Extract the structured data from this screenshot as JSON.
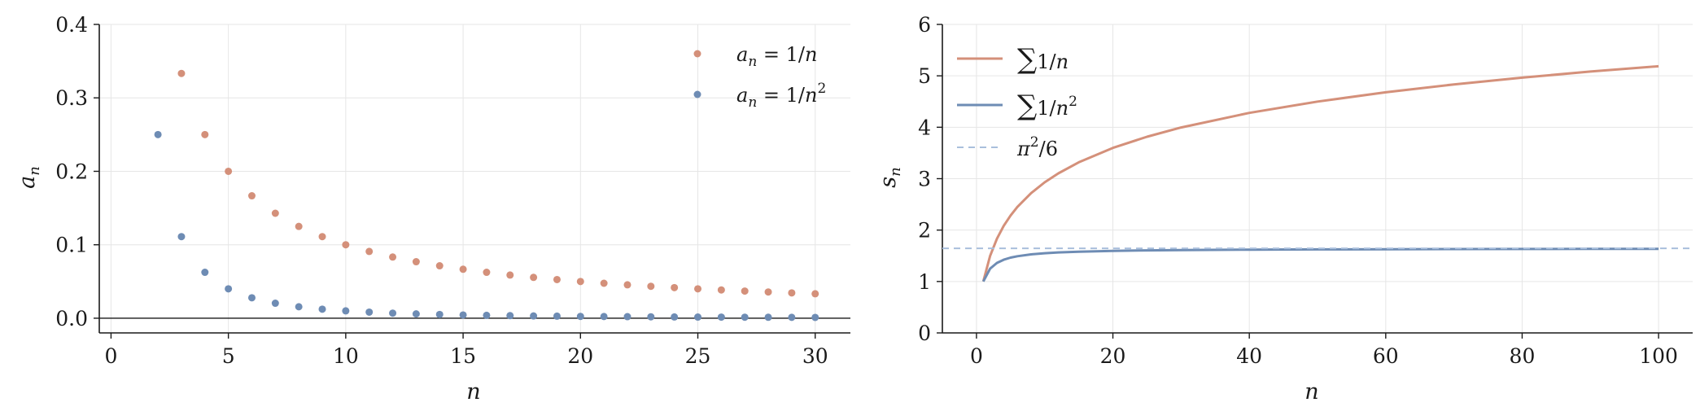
{
  "colors": {
    "harmonic": "#d4907a",
    "basel": "#6e8cb4",
    "reference": "#a9bfdc"
  },
  "chart_data": [
    {
      "type": "scatter",
      "xlabel": "n",
      "ylabel": "a_n",
      "xlim": [
        -0.5,
        31.5
      ],
      "ylim": [
        -0.02,
        0.4
      ],
      "xticks": [
        0,
        5,
        10,
        15,
        20,
        25,
        30
      ],
      "yticks": [
        0.0,
        0.1,
        0.2,
        0.3,
        0.4
      ],
      "xtick_labels": [
        "0",
        "5",
        "10",
        "15",
        "20",
        "25",
        "30"
      ],
      "ytick_labels": [
        "0.0",
        "0.1",
        "0.2",
        "0.3",
        "0.4"
      ],
      "grid": true,
      "horizontal_line": 0,
      "legend_position": "top-right",
      "series": [
        {
          "name": "a_n = 1/n",
          "color_key": "harmonic",
          "x": [
            3,
            4,
            5,
            6,
            7,
            8,
            9,
            10,
            11,
            12,
            13,
            14,
            15,
            16,
            17,
            18,
            19,
            20,
            21,
            22,
            23,
            24,
            25,
            26,
            27,
            28,
            29,
            30
          ],
          "y": [
            0.3333,
            0.25,
            0.2,
            0.1667,
            0.1429,
            0.125,
            0.1111,
            0.1,
            0.0909,
            0.0833,
            0.0769,
            0.0714,
            0.0667,
            0.0625,
            0.0588,
            0.0556,
            0.0526,
            0.05,
            0.0476,
            0.0455,
            0.0435,
            0.0417,
            0.04,
            0.0385,
            0.037,
            0.0357,
            0.0345,
            0.0333
          ]
        },
        {
          "name": "a_n = 1/n^2",
          "color_key": "basel",
          "x": [
            2,
            3,
            4,
            5,
            6,
            7,
            8,
            9,
            10,
            11,
            12,
            13,
            14,
            15,
            16,
            17,
            18,
            19,
            20,
            21,
            22,
            23,
            24,
            25,
            26,
            27,
            28,
            29,
            30
          ],
          "y": [
            0.25,
            0.1111,
            0.0625,
            0.04,
            0.0278,
            0.0204,
            0.0156,
            0.0123,
            0.01,
            0.0083,
            0.0069,
            0.0059,
            0.0051,
            0.0044,
            0.0039,
            0.0035,
            0.0031,
            0.0028,
            0.0025,
            0.0023,
            0.0021,
            0.0019,
            0.0017,
            0.0016,
            0.0015,
            0.0014,
            0.0013,
            0.0012,
            0.0011
          ]
        }
      ]
    },
    {
      "type": "line",
      "xlabel": "n",
      "ylabel": "s_n",
      "xlim": [
        -5,
        105
      ],
      "ylim": [
        0,
        6
      ],
      "xticks": [
        0,
        20,
        40,
        60,
        80,
        100
      ],
      "yticks": [
        0,
        1,
        2,
        3,
        4,
        5,
        6
      ],
      "xtick_labels": [
        "0",
        "20",
        "40",
        "60",
        "80",
        "100"
      ],
      "ytick_labels": [
        "0",
        "1",
        "2",
        "3",
        "4",
        "5",
        "6"
      ],
      "grid": true,
      "legend_position": "top-left",
      "series": [
        {
          "name": "∑1/n",
          "color_key": "harmonic",
          "x": [
            1,
            2,
            3,
            4,
            5,
            6,
            8,
            10,
            12,
            15,
            20,
            25,
            30,
            40,
            50,
            60,
            70,
            80,
            90,
            100
          ],
          "y": [
            1.0,
            1.5,
            1.833,
            2.083,
            2.283,
            2.45,
            2.718,
            2.929,
            3.103,
            3.318,
            3.598,
            3.816,
            3.995,
            4.279,
            4.499,
            4.68,
            4.833,
            4.965,
            5.083,
            5.187
          ]
        },
        {
          "name": "∑1/n²",
          "color_key": "basel",
          "x": [
            1,
            2,
            3,
            4,
            5,
            6,
            8,
            10,
            12,
            15,
            20,
            25,
            30,
            40,
            50,
            60,
            70,
            80,
            90,
            100
          ],
          "y": [
            1.0,
            1.25,
            1.361,
            1.424,
            1.464,
            1.491,
            1.527,
            1.55,
            1.565,
            1.58,
            1.596,
            1.606,
            1.612,
            1.62,
            1.625,
            1.628,
            1.631,
            1.632,
            1.634,
            1.635
          ]
        },
        {
          "name": "π²/6",
          "color_key": "reference",
          "style": "dashed",
          "y_constant": 1.6449
        }
      ]
    }
  ]
}
